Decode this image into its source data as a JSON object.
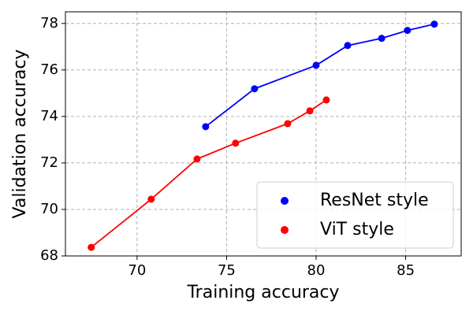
{
  "chart_data": {
    "type": "line",
    "xlabel": "Training accuracy",
    "ylabel": "Validation accuracy",
    "xlim": [
      66,
      88.1
    ],
    "ylim": [
      68,
      78.5
    ],
    "xticks": [
      70,
      75,
      80,
      85
    ],
    "yticks": [
      68,
      70,
      72,
      74,
      76,
      78
    ],
    "grid": true,
    "legend": "lower right",
    "markers": true,
    "series": [
      {
        "name": "ResNet style",
        "color": "#0000ff",
        "x": [
          73.83,
          76.56,
          80.0,
          81.76,
          83.66,
          85.1,
          86.6
        ],
        "values": [
          73.56,
          75.19,
          76.2,
          77.05,
          77.36,
          77.7,
          77.97
        ]
      },
      {
        "name": "ViT style",
        "color": "#ff0000",
        "x": [
          67.44,
          70.79,
          73.35,
          75.5,
          78.41,
          79.65,
          80.57
        ],
        "values": [
          68.37,
          70.44,
          72.17,
          72.85,
          73.69,
          74.24,
          74.71
        ]
      }
    ]
  }
}
